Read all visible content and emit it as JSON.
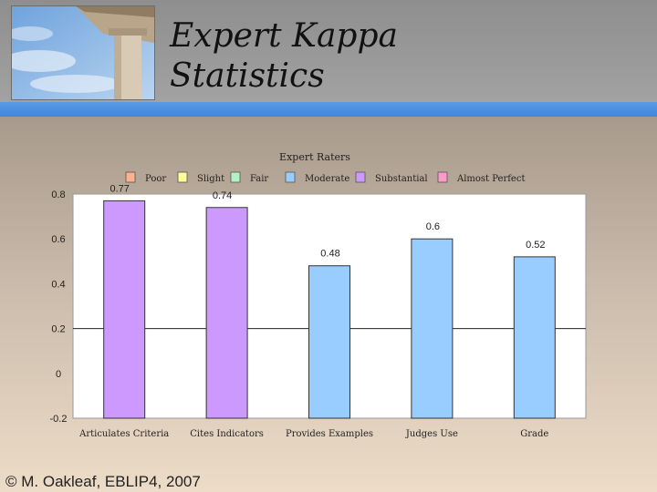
{
  "slide": {
    "title_line1": "Expert Kappa",
    "title_line2": "Statistics",
    "footer": "© M. Oakleaf, EBLIP4, 2007"
  },
  "colors": {
    "substantial": "#cc99ff",
    "moderate": "#99ccff",
    "accent_bar": "#3f86dc"
  },
  "chart_data": {
    "type": "bar",
    "title": "Expert Raters",
    "categories": [
      "Articulates Criteria",
      "Cites Indicators",
      "Provides Examples",
      "Judges Use",
      "Grade"
    ],
    "values": [
      0.77,
      0.74,
      0.48,
      0.6,
      0.52
    ],
    "value_labels": [
      "0.77",
      "0.74",
      "0.48",
      "0.6",
      "0.52"
    ],
    "bar_bands": [
      "Substantial",
      "Substantial",
      "Moderate",
      "Moderate",
      "Moderate"
    ],
    "ylim": [
      -0.2,
      0.8
    ],
    "yticks": [
      0.8,
      0.6,
      0.4,
      0.2,
      0,
      -0.2
    ],
    "ytick_labels": [
      "0.8",
      "0.6",
      "0.4",
      "0.2",
      "0",
      "-0.2"
    ],
    "gridline_at": 0.2,
    "legend": {
      "placement": "top",
      "entries": [
        {
          "label": "Poor",
          "color": "#ffb08f"
        },
        {
          "label": "Slight",
          "color": "#ffff99"
        },
        {
          "label": "Fair",
          "color": "#b3f2c4"
        },
        {
          "label": "Moderate",
          "color": "#99ccff"
        },
        {
          "label": "Substantial",
          "color": "#cc99ff"
        },
        {
          "label": "Almost Perfect",
          "color": "#ff99cc"
        }
      ]
    }
  }
}
